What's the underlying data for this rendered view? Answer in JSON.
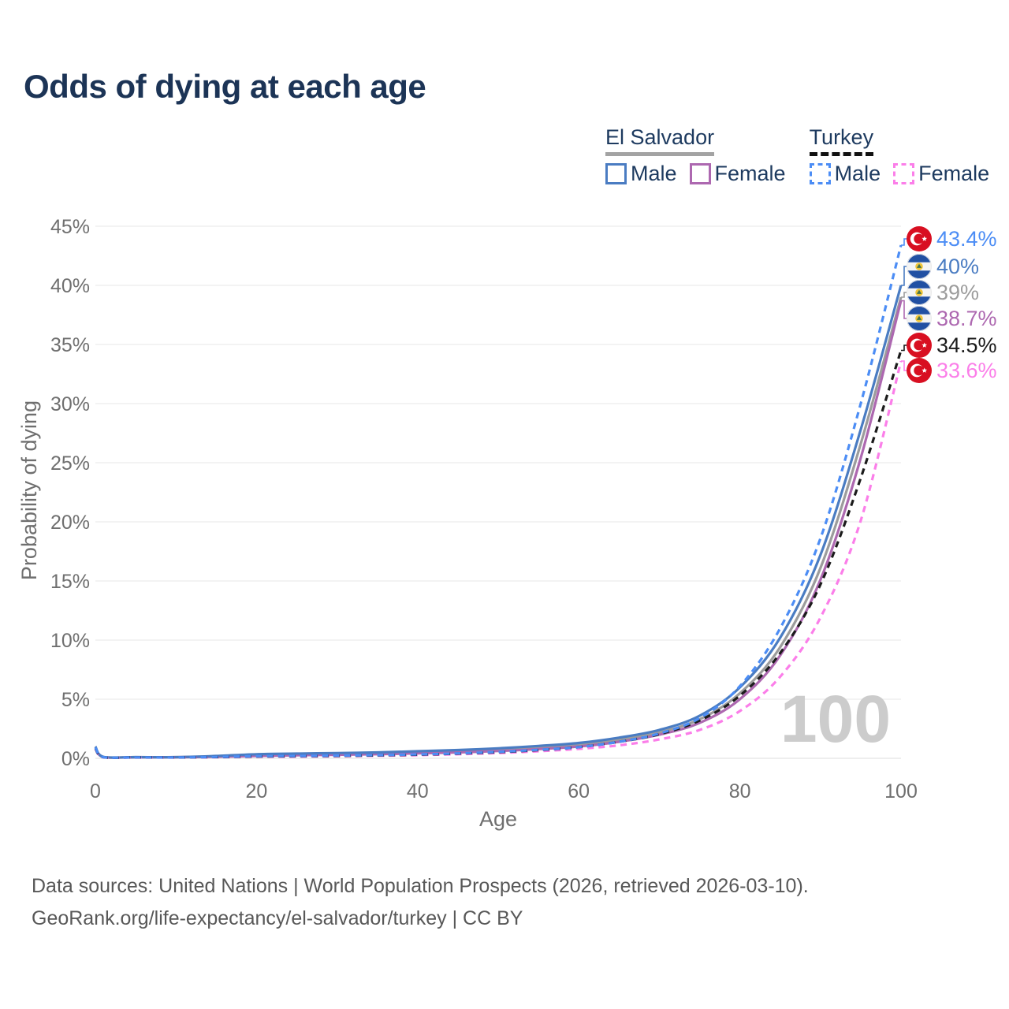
{
  "title": "Odds of dying at each age",
  "legend": {
    "groups": [
      {
        "country": "El Salvador",
        "underline_style": "solid",
        "underline_color": "#a3a3a3",
        "items": [
          {
            "label": "Male",
            "color": "#4a7cc2",
            "dashed": false
          },
          {
            "label": "Female",
            "color": "#ad68b0",
            "dashed": false
          }
        ]
      },
      {
        "country": "Turkey",
        "underline_style": "dashed",
        "underline_color": "#111111",
        "items": [
          {
            "label": "Male",
            "color": "#4c8df5",
            "dashed": true
          },
          {
            "label": "Female",
            "color": "#fb7ee9",
            "dashed": true
          }
        ]
      }
    ]
  },
  "chart_data": {
    "type": "line",
    "title": "Odds of dying at each age",
    "xlabel": "Age",
    "ylabel": "Probability of dying",
    "xlim": [
      0,
      100
    ],
    "ylim": [
      0,
      45
    ],
    "grid": "horizontal",
    "xticks": [
      0,
      20,
      40,
      60,
      80,
      100
    ],
    "ytick_values": [
      0,
      5,
      10,
      15,
      20,
      25,
      30,
      35,
      40,
      45
    ],
    "ytick_labels": [
      "0%",
      "5%",
      "10%",
      "15%",
      "20%",
      "25%",
      "30%",
      "35%",
      "40%",
      "45%"
    ],
    "age_watermark": "100",
    "x": [
      0,
      1,
      5,
      10,
      15,
      20,
      25,
      30,
      35,
      40,
      45,
      50,
      55,
      60,
      65,
      70,
      75,
      80,
      85,
      90,
      95,
      100
    ],
    "series": [
      {
        "id": "es_both",
        "name": "El Salvador — Both sexes",
        "country": "El Salvador",
        "sex": "both",
        "color": "#9c9c9c",
        "dashed": false,
        "flag": "sv",
        "end_label": "39%",
        "values": [
          0.95,
          0.11,
          0.1,
          0.1,
          0.17,
          0.3,
          0.34,
          0.38,
          0.42,
          0.5,
          0.6,
          0.72,
          0.9,
          1.15,
          1.6,
          2.2,
          3.3,
          5.5,
          9.4,
          16.1,
          26.6,
          39.0
        ]
      },
      {
        "id": "es_female",
        "name": "El Salvador — Female",
        "country": "El Salvador",
        "sex": "female",
        "color": "#ad68b0",
        "dashed": false,
        "flag": "sv",
        "end_label": "38.7%",
        "values": [
          0.9,
          0.1,
          0.09,
          0.09,
          0.13,
          0.2,
          0.26,
          0.3,
          0.35,
          0.42,
          0.5,
          0.62,
          0.78,
          1.0,
          1.4,
          2.0,
          3.0,
          5.0,
          8.7,
          15.1,
          25.4,
          38.7
        ]
      },
      {
        "id": "es_male",
        "name": "El Salvador — Male",
        "country": "El Salvador",
        "sex": "male",
        "color": "#4a7cc2",
        "dashed": false,
        "flag": "sv",
        "end_label": "40%",
        "values": [
          1.0,
          0.12,
          0.1,
          0.1,
          0.2,
          0.35,
          0.4,
          0.45,
          0.5,
          0.6,
          0.7,
          0.85,
          1.05,
          1.3,
          1.75,
          2.4,
          3.6,
          6.0,
          10.2,
          17.2,
          27.8,
          40.0
        ]
      },
      {
        "id": "tr_female",
        "name": "Turkey — Female",
        "country": "Turkey",
        "sex": "female",
        "color": "#fb7ee9",
        "dashed": true,
        "flag": "tr",
        "end_label": "33.6%",
        "values": [
          0.8,
          0.08,
          0.07,
          0.07,
          0.09,
          0.13,
          0.15,
          0.18,
          0.22,
          0.27,
          0.35,
          0.45,
          0.6,
          0.8,
          1.1,
          1.6,
          2.4,
          4.0,
          6.9,
          11.9,
          20.1,
          33.6
        ]
      },
      {
        "id": "tr_both",
        "name": "Turkey — Both sexes",
        "country": "Turkey",
        "sex": "both",
        "color": "#1b1b1b",
        "dashed": true,
        "flag": "tr",
        "end_label": "34.5%",
        "values": [
          0.85,
          0.09,
          0.08,
          0.08,
          0.11,
          0.16,
          0.18,
          0.21,
          0.25,
          0.31,
          0.4,
          0.52,
          0.7,
          0.95,
          1.4,
          2.05,
          3.2,
          5.3,
          8.9,
          14.7,
          23.7,
          34.5
        ]
      },
      {
        "id": "tr_male",
        "name": "Turkey — Male",
        "country": "Turkey",
        "sex": "male",
        "color": "#4c8df5",
        "dashed": true,
        "flag": "tr",
        "end_label": "43.4%",
        "values": [
          0.9,
          0.1,
          0.08,
          0.08,
          0.12,
          0.18,
          0.2,
          0.23,
          0.27,
          0.33,
          0.42,
          0.55,
          0.72,
          0.95,
          1.4,
          2.1,
          3.4,
          6.1,
          11.0,
          18.6,
          30.0,
          43.4
        ]
      }
    ]
  },
  "source": {
    "line1": "Data sources: United Nations | World Population Prospects (2026, retrieved 2026-03-10).",
    "line2": "GeoRank.org/life-expectancy/el-salvador/turkey | CC BY"
  }
}
